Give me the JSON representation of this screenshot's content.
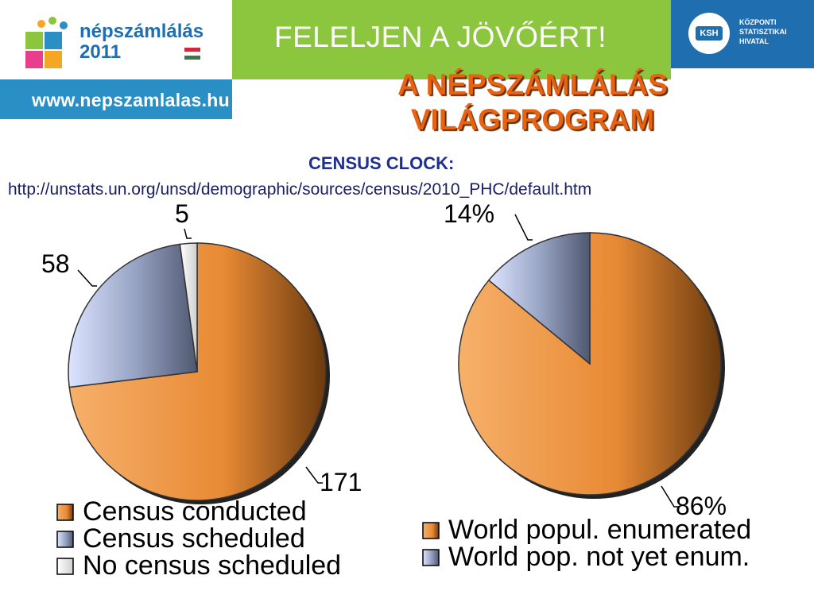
{
  "header": {
    "logo_name": "népszámlálás",
    "logo_year": "2011",
    "url": "www.nepszamlalas.hu",
    "slogan": "FELELJEN A JÖVŐÉRT!",
    "ksh_abbr": "KSH",
    "ksh_lines": [
      "KÖZPONTI",
      "STATISZTIKAI",
      "HIVATAL"
    ]
  },
  "title_line1": "A NÉPSZÁMLÁLÁS",
  "title_line2": "VILÁGPROGRAM",
  "subtitle": "CENSUS CLOCK:",
  "link": "http://unstats.un.org/unsd/demographic/sources/census/2010_PHC/default.htm",
  "colors": {
    "orange": "#f29d47",
    "blue": "#bcc9ec",
    "white": "#f2f2f2",
    "title": "#e8620f",
    "banner_green": "#8cc63e",
    "banner_blue": "#2a8fc4"
  },
  "chart_data": [
    {
      "type": "pie",
      "title": "",
      "slices": [
        {
          "label": "Census conducted",
          "value": 171,
          "color": "#f29d47",
          "data_label": "171"
        },
        {
          "label": "Census scheduled",
          "value": 58,
          "color": "#bcc9ec",
          "data_label": "58"
        },
        {
          "label": "No census scheduled",
          "value": 5,
          "color": "#f2f2f2",
          "data_label": "5"
        }
      ],
      "legend_placement": "bottom"
    },
    {
      "type": "pie",
      "title": "",
      "slices": [
        {
          "label": "World popul. enumerated",
          "value": 86,
          "color": "#f29d47",
          "data_label": "86%"
        },
        {
          "label": "World pop. not yet enum.",
          "value": 14,
          "color": "#bcc9ec",
          "data_label": "14%"
        }
      ],
      "legend_placement": "bottom"
    }
  ]
}
